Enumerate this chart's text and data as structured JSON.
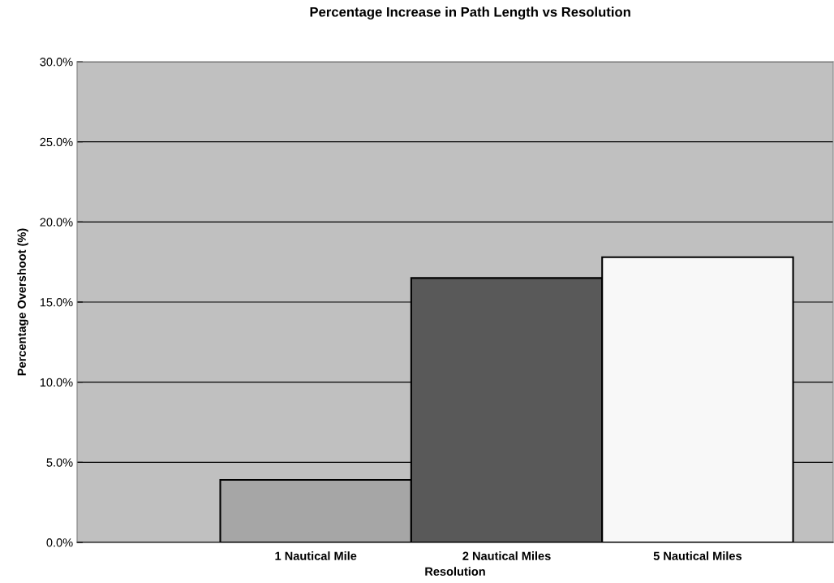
{
  "chart_data": {
    "type": "bar",
    "title": "Percentage Increase in Path Length vs Resolution",
    "xlabel": "Resolution",
    "ylabel": "Percentage Overshoot (%)",
    "categories": [
      "1 Nautical Mile",
      "2 Nautical Miles",
      "5 Nautical Miles"
    ],
    "values": [
      3.9,
      16.5,
      17.8
    ],
    "colors": [
      "#a6a6a6",
      "#595959",
      "#f8f8f8"
    ],
    "ylim": [
      0,
      30
    ],
    "yticks": [
      {
        "value": 0,
        "label": "0.0%"
      },
      {
        "value": 5,
        "label": "5.0%"
      },
      {
        "value": 10,
        "label": "10.0%"
      },
      {
        "value": 15,
        "label": "15.0%"
      },
      {
        "value": 20,
        "label": "20.0%"
      },
      {
        "value": 25,
        "label": "25.0%"
      },
      {
        "value": 30,
        "label": "30.0%"
      }
    ],
    "grid": "y",
    "legend": false
  }
}
